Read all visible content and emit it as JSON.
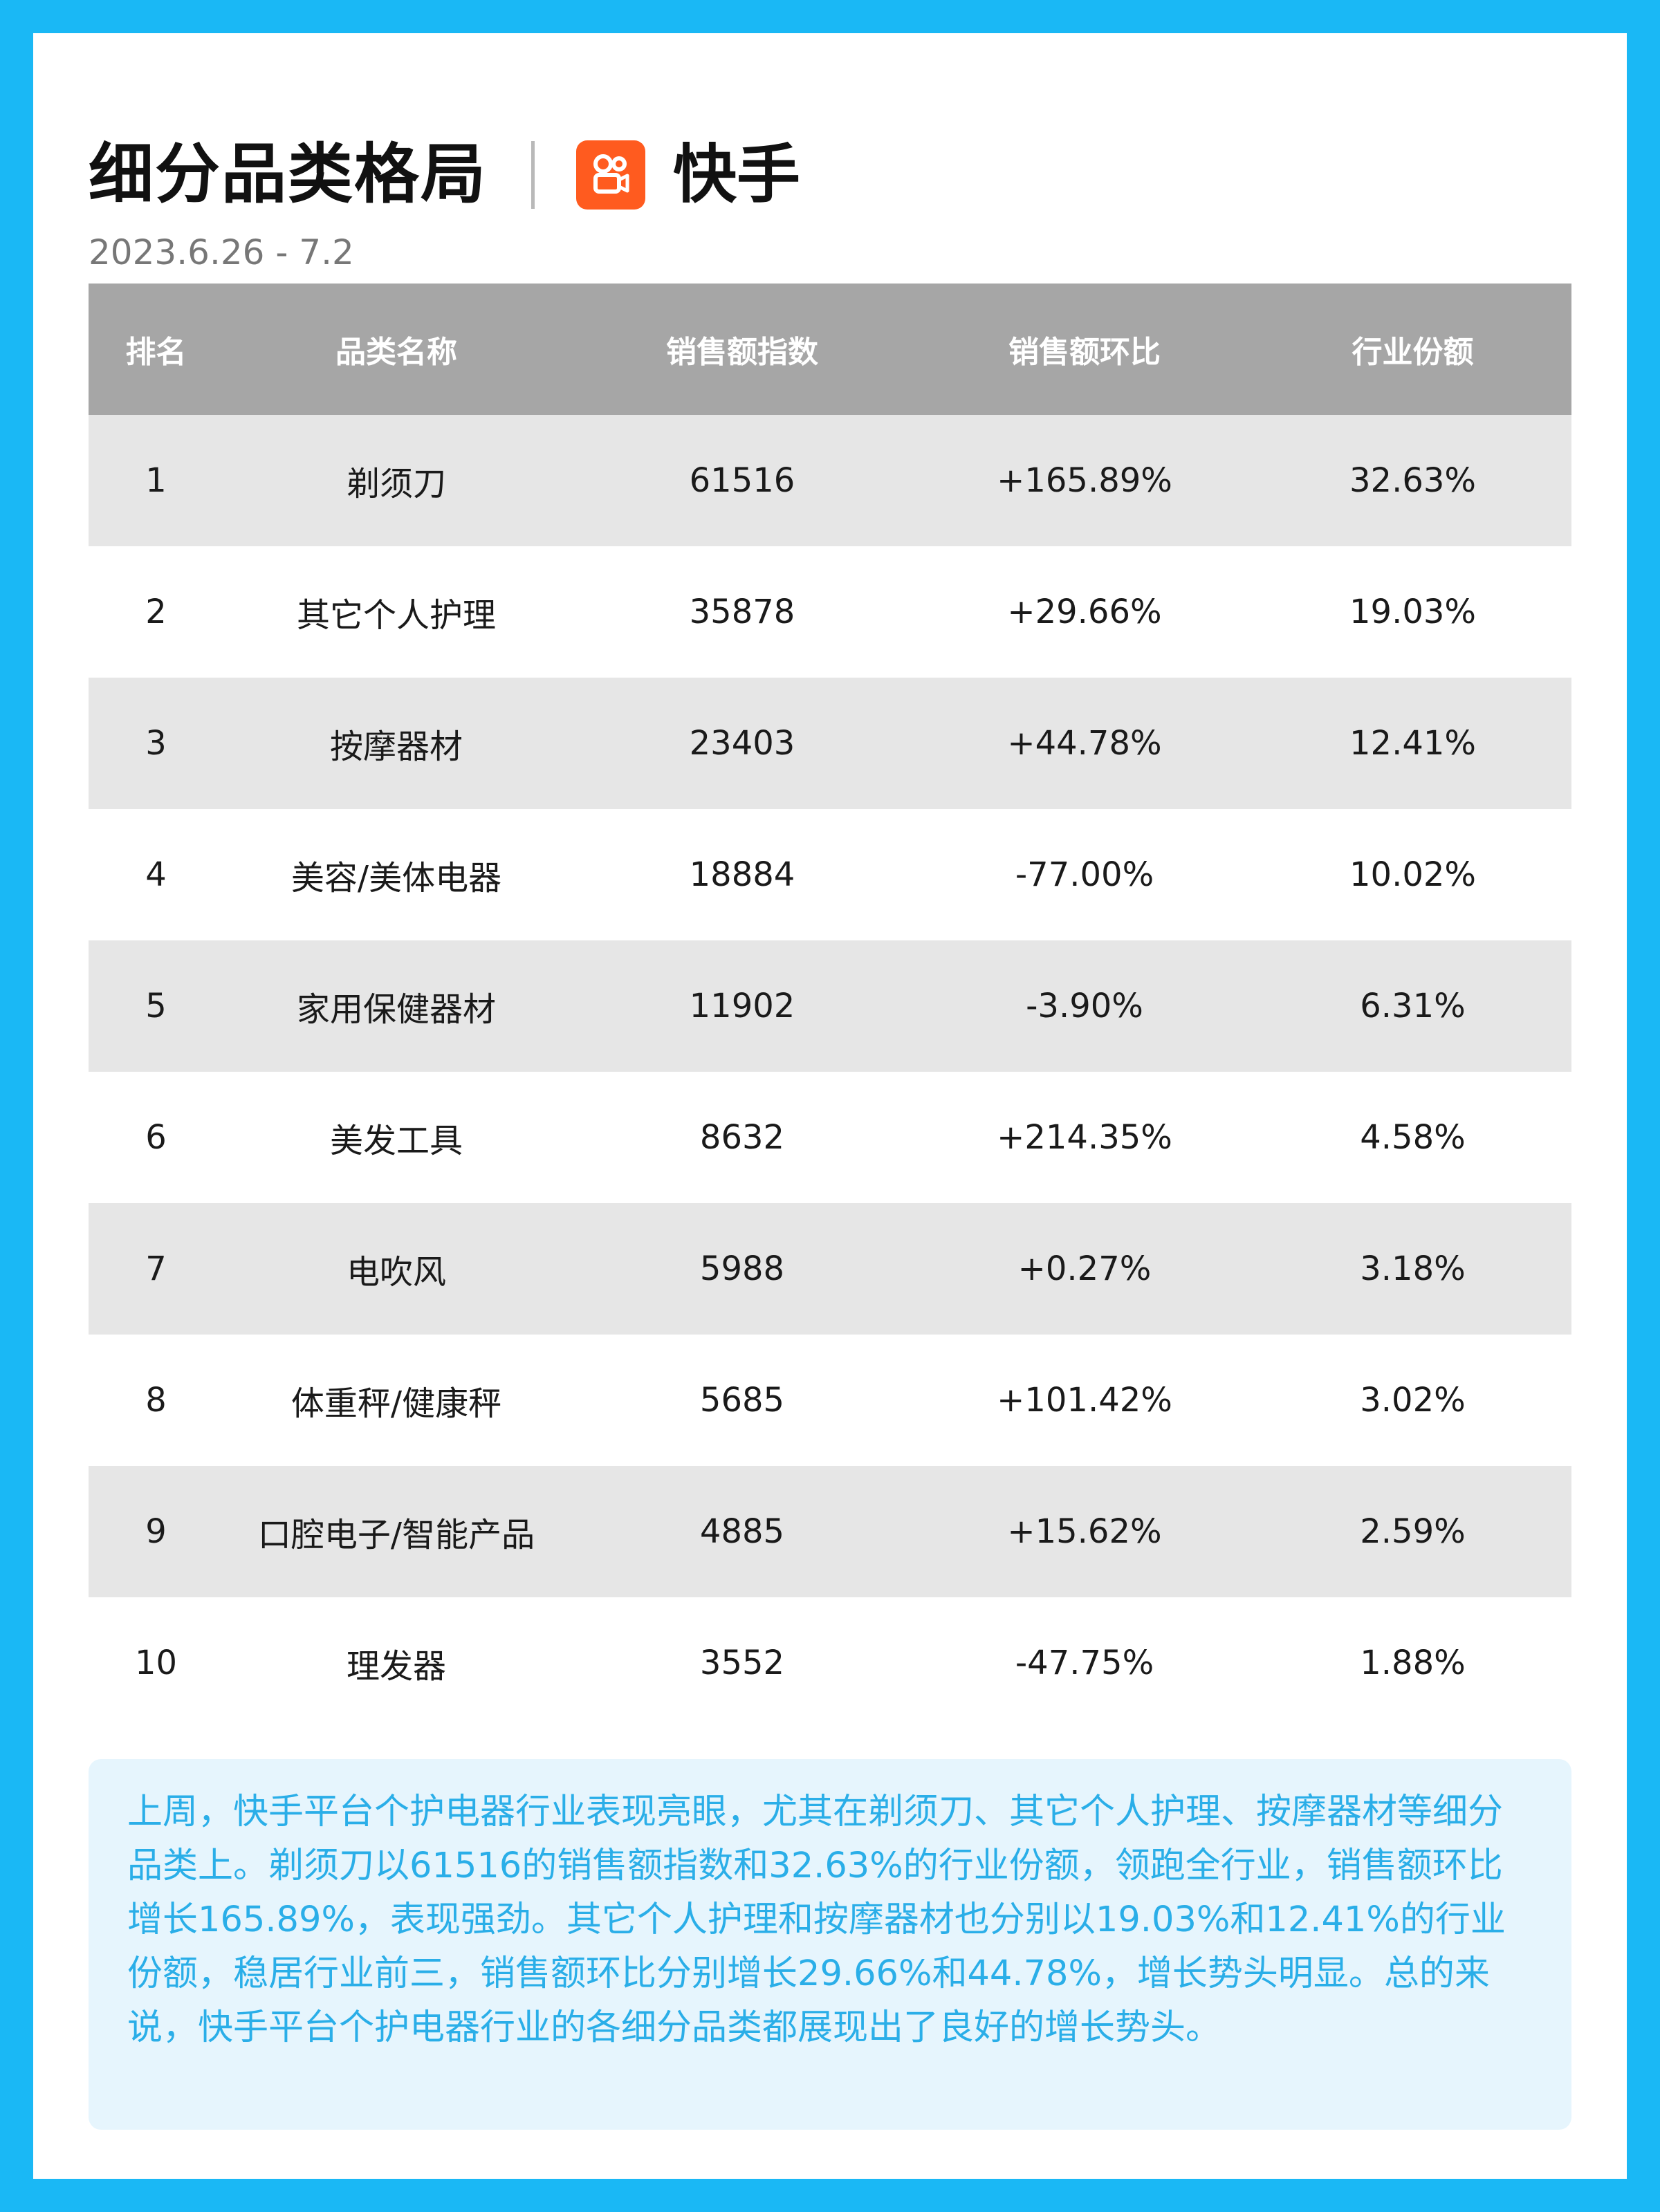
{
  "header": {
    "title": "细分品类格局",
    "brand_icon": "kuaishou-logo-icon",
    "brand_name": "快手",
    "date_range": "2023.6.26 - 7.2"
  },
  "colors": {
    "background": "#1ab8f5",
    "card": "#ffffff",
    "table_header": "#a6a6a6",
    "row_shade": "#e6e6e6",
    "positive": "#f02d55",
    "negative": "#1aa84c",
    "summary_bg": "#e6f5fd",
    "summary_text": "#2aaee8",
    "brand": "#ff5b1f"
  },
  "table": {
    "columns": [
      "排名",
      "品类名称",
      "销售额指数",
      "销售额环比",
      "行业份额"
    ],
    "rows": [
      {
        "rank": "1",
        "name": "剃须刀",
        "index": "61516",
        "mom": "+165.89%",
        "share": "32.63%"
      },
      {
        "rank": "2",
        "name": "其它个人护理",
        "index": "35878",
        "mom": "+29.66%",
        "share": "19.03%"
      },
      {
        "rank": "3",
        "name": "按摩器材",
        "index": "23403",
        "mom": "+44.78%",
        "share": "12.41%"
      },
      {
        "rank": "4",
        "name": "美容/美体电器",
        "index": "18884",
        "mom": "-77.00%",
        "share": "10.02%"
      },
      {
        "rank": "5",
        "name": "家用保健器材",
        "index": "11902",
        "mom": "-3.90%",
        "share": "6.31%"
      },
      {
        "rank": "6",
        "name": "美发工具",
        "index": "8632",
        "mom": "+214.35%",
        "share": "4.58%"
      },
      {
        "rank": "7",
        "name": "电吹风",
        "index": "5988",
        "mom": "+0.27%",
        "share": "3.18%"
      },
      {
        "rank": "8",
        "name": "体重秤/健康秤",
        "index": "5685",
        "mom": "+101.42%",
        "share": "3.02%"
      },
      {
        "rank": "9",
        "name": "口腔电子/智能产品",
        "index": "4885",
        "mom": "+15.62%",
        "share": "2.59%"
      },
      {
        "rank": "10",
        "name": "理发器",
        "index": "3552",
        "mom": "-47.75%",
        "share": "1.88%"
      }
    ]
  },
  "summary": "上周，快手平台个护电器行业表现亮眼，尤其在剃须刀、其它个人护理、按摩器材等细分品类上。剃须刀以61516的销售额指数和32.63%的行业份额，领跑全行业，销售额环比增长165.89%，表现强劲。其它个人护理和按摩器材也分别以19.03%和12.41%的行业份额，稳居行业前三，销售额环比分别增长29.66%和44.78%，增长势头明显。总的来说，快手平台个护电器行业的各细分品类都展现出了良好的增长势头。"
}
